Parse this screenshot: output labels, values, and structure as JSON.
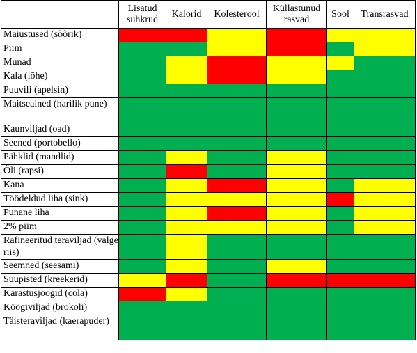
{
  "colors": {
    "green": "#00b050",
    "yellow": "#ffff00",
    "red": "#ff0000"
  },
  "columns": [
    {
      "key": "corner",
      "label": ""
    },
    {
      "key": "added_sugar",
      "label": "Lisatud suhkrud"
    },
    {
      "key": "calories",
      "label": "Kalorid"
    },
    {
      "key": "cholesterol",
      "label": "Kolesterool"
    },
    {
      "key": "saturated_fat",
      "label": "Küllastunud rasvad"
    },
    {
      "key": "salt",
      "label": "Sool"
    },
    {
      "key": "trans_fat",
      "label": "Transrasvad"
    }
  ],
  "rows": [
    {
      "label": "Maiustused (sõõrik)",
      "cells": [
        "red",
        "red",
        "yellow",
        "red",
        "yellow",
        "yellow"
      ]
    },
    {
      "label": "Piim",
      "cells": [
        "green",
        "green",
        "yellow",
        "red",
        "green",
        "yellow"
      ]
    },
    {
      "label": "Munad",
      "cells": [
        "green",
        "yellow",
        "red",
        "yellow",
        "yellow",
        "green"
      ]
    },
    {
      "label": "Kala (lõhe)",
      "cells": [
        "green",
        "yellow",
        "red",
        "yellow",
        "green",
        "green"
      ]
    },
    {
      "label": "Puuvili (apelsin)",
      "cells": [
        "green",
        "green",
        "green",
        "green",
        "green",
        "green"
      ]
    },
    {
      "label": "Maitseained (harilik pune)",
      "cells": [
        "green",
        "green",
        "green",
        "green",
        "green",
        "green"
      ]
    },
    {
      "label": "Kaunviljad (oad)",
      "cells": [
        "green",
        "green",
        "green",
        "green",
        "green",
        "green"
      ]
    },
    {
      "label": "Seened (portobello)",
      "cells": [
        "green",
        "green",
        "green",
        "green",
        "green",
        "green"
      ]
    },
    {
      "label": "Pähklid (mandlid)",
      "cells": [
        "green",
        "yellow",
        "green",
        "yellow",
        "green",
        "green"
      ]
    },
    {
      "label": "Õli (rapsi)",
      "cells": [
        "green",
        "red",
        "green",
        "yellow",
        "green",
        "green"
      ]
    },
    {
      "label": "Kana",
      "cells": [
        "green",
        "yellow",
        "red",
        "yellow",
        "green",
        "yellow"
      ]
    },
    {
      "label": "Töödeldud liha (sink)",
      "cells": [
        "green",
        "yellow",
        "yellow",
        "yellow",
        "red",
        "yellow"
      ]
    },
    {
      "label": "Punane liha",
      "cells": [
        "green",
        "yellow",
        "red",
        "yellow",
        "green",
        "yellow"
      ]
    },
    {
      "label": "2% piim",
      "cells": [
        "green",
        "yellow",
        "yellow",
        "yellow",
        "green",
        "yellow"
      ]
    },
    {
      "label": "Rafineeritud teraviljad (valge riis)",
      "cells": [
        "green",
        "yellow",
        "green",
        "green",
        "green",
        "green"
      ]
    },
    {
      "label": "Seemned (seesami)",
      "cells": [
        "green",
        "yellow",
        "green",
        "yellow",
        "green",
        "green"
      ]
    },
    {
      "label": "Suupisted (kreekerid)",
      "cells": [
        "yellow",
        "red",
        "green",
        "red",
        "red",
        "red"
      ]
    },
    {
      "label": "Karastusjoogid (cola)",
      "cells": [
        "red",
        "yellow",
        "green",
        "green",
        "green",
        "green"
      ]
    },
    {
      "label": "Köögiviljad (brokoli)",
      "cells": [
        "green",
        "green",
        "green",
        "green",
        "green",
        "green"
      ]
    },
    {
      "label": "Täisteraviljad (kaerapuder)",
      "cells": [
        "green",
        "green",
        "green",
        "green",
        "green",
        "green"
      ]
    }
  ]
}
